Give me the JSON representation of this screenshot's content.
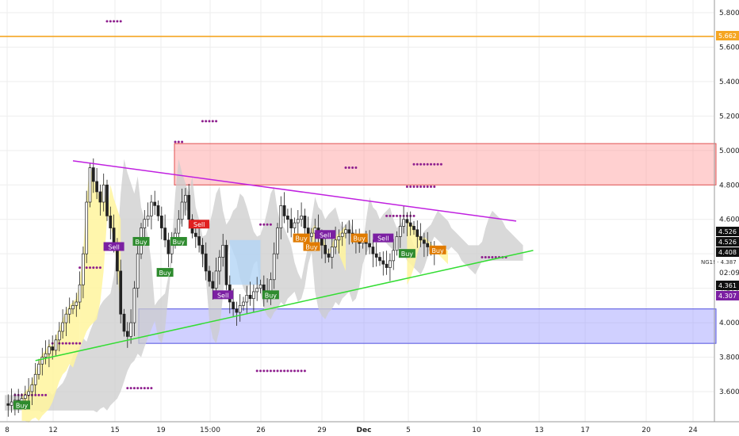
{
  "chart_data": {
    "type": "candlestick",
    "symbol": "NG1!",
    "symbol_suffix": "· 4.387",
    "countdown": "02:09",
    "y_axis": {
      "min": 3.45,
      "max": 5.85,
      "ticks": [
        "5.800",
        "5.600",
        "5.400",
        "5.200",
        "5.000",
        "4.800",
        "4.600",
        "4.400",
        "4.200",
        "4.000",
        "3.800",
        "3.600"
      ]
    },
    "x_ticks": [
      "8",
      "12",
      "15",
      "19",
      "15:00",
      "26",
      "29",
      "Dec",
      "5",
      "10",
      "13",
      "17",
      "20",
      "24"
    ],
    "price_badges": [
      {
        "label": "5.662",
        "value": 5.662,
        "color": "#f5a623"
      },
      {
        "label": "4.526",
        "value": 4.526,
        "color": "#111111"
      },
      {
        "label": "4.526",
        "value": 4.526,
        "color": "#111111"
      },
      {
        "label": "4.408",
        "value": 4.408,
        "color": "#111111"
      },
      {
        "label": "4.361",
        "value": 4.361,
        "color": "#111111"
      },
      {
        "label": "4.307",
        "value": 4.307,
        "color": "#7b1fa2"
      }
    ],
    "horizontal_line": {
      "value": 5.662,
      "color": "#f5a623"
    },
    "zones": [
      {
        "name": "resistance",
        "top": 5.04,
        "bottom": 4.8,
        "color": "#ff8a8a"
      },
      {
        "name": "support",
        "top": 4.08,
        "bottom": 3.88,
        "color": "#8a8aff"
      }
    ],
    "trendlines": [
      {
        "name": "upper",
        "from": [
          20,
          4.94
        ],
        "to": [
          150,
          4.59
        ],
        "color": "#c020e0"
      },
      {
        "name": "lower",
        "from": [
          9,
          3.78
        ],
        "to": [
          155,
          4.42
        ],
        "color": "#33dd33"
      }
    ],
    "signals": [
      {
        "label": "Buy",
        "bar": 5,
        "value": 3.52,
        "color": "#2e8b2e"
      },
      {
        "label": "Sell",
        "bar": 32,
        "value": 4.44,
        "color": "#7b1fa2"
      },
      {
        "label": "Buy",
        "bar": 40,
        "value": 4.47,
        "color": "#2e8b2e"
      },
      {
        "label": "Buy",
        "bar": 47,
        "value": 4.29,
        "color": "#2e8b2e"
      },
      {
        "label": "Buy",
        "bar": 51,
        "value": 4.47,
        "color": "#2e8b2e"
      },
      {
        "label": "Sell",
        "bar": 57,
        "value": 4.57,
        "color": "#e02020"
      },
      {
        "label": "Sell",
        "bar": 64,
        "value": 4.16,
        "color": "#7b1fa2"
      },
      {
        "label": "Buy",
        "bar": 78,
        "value": 4.16,
        "color": "#2e8b2e"
      },
      {
        "label": "Buy",
        "bar": 87,
        "value": 4.49,
        "color": "#e07b00"
      },
      {
        "label": "Buy",
        "bar": 90,
        "value": 4.44,
        "color": "#e07b00"
      },
      {
        "label": "Sell",
        "bar": 94,
        "value": 4.51,
        "color": "#7b1fa2"
      },
      {
        "label": "Buy",
        "bar": 104,
        "value": 4.49,
        "color": "#e07b00"
      },
      {
        "label": "Sell",
        "bar": 111,
        "value": 4.49,
        "color": "#7b1fa2"
      },
      {
        "label": "Buy",
        "bar": 118,
        "value": 4.4,
        "color": "#2e8b2e"
      },
      {
        "label": "Buy",
        "bar": 127,
        "value": 4.42,
        "color": "#e07b00"
      }
    ],
    "colors": {
      "cloud_gray": "#cccccc",
      "cloud_yellow": "#fff59d",
      "cloud_blue": "#b3d4f5",
      "dots": "#8e1f8e"
    }
  }
}
